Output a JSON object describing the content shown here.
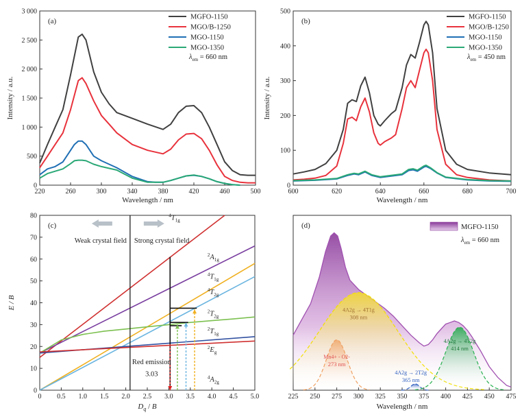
{
  "chart_data": [
    {
      "type": "line",
      "panel": "(a)",
      "xlabel": "Wavelength / nm",
      "ylabel": "Intensity / a.u.",
      "xlim": [
        220,
        500
      ],
      "ylim": [
        0,
        3000
      ],
      "xticks": [
        220,
        260,
        300,
        340,
        380,
        420,
        460,
        500
      ],
      "yticks": [
        0,
        500,
        1000,
        1500,
        2000,
        2500,
        3000
      ],
      "ytick_labels": [
        "0",
        "500",
        "1 000",
        "1 500",
        "2 000",
        "2 500",
        "3 000"
      ],
      "annotation": "λem = 660 nm",
      "annotation_parts": {
        "sym": "λ",
        "sub": "em",
        "rest": " = 660 nm"
      },
      "legend_position": "top-right",
      "series": [
        {
          "name": "MGFO-1150",
          "color": "#404040",
          "x": [
            220,
            230,
            240,
            250,
            260,
            270,
            275,
            280,
            290,
            300,
            310,
            320,
            340,
            360,
            380,
            390,
            400,
            410,
            420,
            430,
            440,
            450,
            460,
            470,
            480,
            490,
            500
          ],
          "y": [
            380,
            700,
            1000,
            1300,
            1900,
            2550,
            2600,
            2500,
            1950,
            1600,
            1400,
            1250,
            1150,
            1050,
            960,
            1050,
            1250,
            1360,
            1370,
            1250,
            1000,
            700,
            400,
            250,
            180,
            170,
            170
          ]
        },
        {
          "name": "MGO/B-1250",
          "color": "#e8323c",
          "x": [
            220,
            230,
            240,
            250,
            260,
            270,
            275,
            280,
            290,
            300,
            310,
            320,
            340,
            360,
            380,
            390,
            400,
            410,
            420,
            430,
            440,
            450,
            460,
            470,
            480,
            490,
            500
          ],
          "y": [
            300,
            500,
            700,
            900,
            1300,
            1800,
            1850,
            1750,
            1450,
            1200,
            1050,
            900,
            700,
            600,
            540,
            620,
            780,
            880,
            890,
            800,
            600,
            350,
            150,
            80,
            50,
            40,
            40
          ]
        },
        {
          "name": "MGO-1150",
          "color": "#1f6fb4",
          "x": [
            220,
            230,
            240,
            250,
            260,
            265,
            270,
            275,
            280,
            290,
            300,
            320,
            340,
            360,
            370,
            380,
            390,
            400,
            410,
            420,
            430,
            440,
            450,
            460,
            470,
            480
          ],
          "y": [
            180,
            280,
            320,
            400,
            600,
            700,
            760,
            760,
            700,
            500,
            420,
            300,
            150,
            60,
            50,
            50,
            80,
            120,
            160,
            170,
            150,
            110,
            60,
            30,
            10,
            0
          ]
        },
        {
          "name": "MGO-1350",
          "color": "#2aa876",
          "x": [
            220,
            230,
            240,
            250,
            260,
            265,
            270,
            275,
            280,
            290,
            300,
            320,
            340,
            360,
            370,
            380,
            390,
            400,
            410,
            420,
            430,
            440,
            450,
            460,
            470,
            480
          ],
          "y": [
            120,
            200,
            240,
            280,
            370,
            420,
            430,
            430,
            420,
            360,
            320,
            260,
            120,
            50,
            50,
            50,
            80,
            120,
            160,
            175,
            150,
            110,
            60,
            30,
            10,
            0
          ]
        }
      ]
    },
    {
      "type": "line",
      "panel": "(b)",
      "xlabel": "Wavelength / nm",
      "ylabel": "Intensity / a.u.",
      "xlim": [
        600,
        700
      ],
      "ylim": [
        0,
        500
      ],
      "xticks": [
        600,
        620,
        640,
        660,
        680,
        700
      ],
      "yticks": [
        0,
        100,
        200,
        300,
        400,
        500
      ],
      "annotation": "λem = 450 nm",
      "annotation_parts": {
        "sym": "λ",
        "sub": "em",
        "rest": " = 450 nm"
      },
      "legend_position": "top-right",
      "series": [
        {
          "name": "MGFO-1150",
          "color": "#404040",
          "x": [
            600,
            605,
            610,
            615,
            620,
            623,
            625,
            627,
            629,
            631,
            633,
            635,
            637,
            639,
            640,
            642,
            645,
            647,
            650,
            652,
            654,
            656,
            658,
            660,
            661,
            662,
            664,
            666,
            670,
            675,
            680,
            690,
            700
          ],
          "y": [
            32,
            38,
            45,
            62,
            100,
            160,
            235,
            245,
            240,
            285,
            310,
            265,
            200,
            175,
            170,
            185,
            205,
            215,
            280,
            345,
            375,
            365,
            410,
            460,
            470,
            460,
            380,
            220,
            100,
            60,
            45,
            35,
            30
          ]
        },
        {
          "name": "MGO/B-1250",
          "color": "#e8323c",
          "x": [
            600,
            605,
            610,
            615,
            620,
            623,
            625,
            627,
            629,
            631,
            633,
            635,
            637,
            639,
            640,
            642,
            645,
            647,
            650,
            652,
            654,
            656,
            658,
            660,
            661,
            662,
            664,
            666,
            670,
            675,
            680,
            690,
            700
          ],
          "y": [
            15,
            17,
            20,
            28,
            55,
            120,
            190,
            195,
            185,
            225,
            250,
            210,
            150,
            120,
            115,
            125,
            135,
            145,
            220,
            280,
            300,
            280,
            330,
            380,
            390,
            380,
            300,
            160,
            60,
            30,
            22,
            15,
            12
          ]
        },
        {
          "name": "MGO-1150",
          "color": "#1f6fb4",
          "x": [
            600,
            610,
            620,
            625,
            628,
            630,
            633,
            636,
            640,
            645,
            650,
            653,
            655,
            657,
            660,
            661,
            663,
            666,
            670,
            680,
            690,
            700
          ],
          "y": [
            12,
            14,
            18,
            28,
            32,
            30,
            38,
            28,
            22,
            26,
            30,
            42,
            44,
            40,
            52,
            54,
            48,
            35,
            22,
            15,
            12,
            11
          ]
        },
        {
          "name": "MGO-1350",
          "color": "#2aa876",
          "x": [
            600,
            610,
            620,
            625,
            628,
            630,
            633,
            636,
            640,
            645,
            650,
            653,
            655,
            657,
            660,
            661,
            663,
            666,
            670,
            680,
            690,
            700
          ],
          "y": [
            13,
            15,
            19,
            30,
            34,
            32,
            40,
            30,
            24,
            28,
            32,
            45,
            47,
            43,
            55,
            57,
            50,
            36,
            23,
            16,
            13,
            12
          ]
        }
      ]
    },
    {
      "type": "line",
      "panel": "(c)",
      "xlabel": "Dq / B",
      "ylabel": "E / B",
      "xlim": [
        0,
        5
      ],
      "ylim": [
        0,
        80
      ],
      "xticks": [
        0,
        0.5,
        1.0,
        1.5,
        2.0,
        2.5,
        3.0,
        3.5,
        4.0,
        4.5,
        5.0
      ],
      "xtick_labels": [
        "0",
        "0.5",
        "1.0",
        "1.5",
        "2.0",
        "2.5",
        "3.0",
        "3.5",
        "4.0",
        "4.5",
        "5.0"
      ],
      "yticks": [
        0,
        10,
        20,
        30,
        40,
        50,
        60,
        70,
        80
      ],
      "weak_field_label": "Weak crystal field",
      "strong_field_label": "Strong crystal field",
      "boundary_dq": 2.1,
      "red_emission_label": "Red emission",
      "red_emission_value": "3.03",
      "series": [
        {
          "name": "4T1g",
          "color": "#d03030",
          "x": [
            0,
            4.3
          ],
          "y": [
            15,
            80
          ]
        },
        {
          "name": "2A1g",
          "color": "#7a3fa0",
          "x": [
            0,
            5
          ],
          "y": [
            17,
            66
          ]
        },
        {
          "name": "4T1g",
          "color": "#f0b020",
          "x": [
            0,
            5
          ],
          "y": [
            0,
            58
          ]
        },
        {
          "name": "4T2g",
          "color": "#6bb5e0",
          "x": [
            0,
            5
          ],
          "y": [
            0,
            52
          ]
        },
        {
          "name": "2T2g",
          "color": "#7cc050",
          "x": [
            0,
            0.5,
            1,
            1.5,
            2,
            2.5,
            3,
            3.5,
            4,
            4.5,
            5
          ],
          "y": [
            17,
            23,
            25.5,
            27,
            28,
            29,
            30,
            31,
            31.8,
            32.6,
            33.5
          ]
        },
        {
          "name": "2T1g",
          "color": "#3050a0",
          "x": [
            0,
            5
          ],
          "y": [
            17,
            24.5
          ]
        },
        {
          "name": "2Eg",
          "color": "#d03030",
          "x": [
            0,
            5
          ],
          "y": [
            17.5,
            22.5
          ]
        }
      ],
      "level_labels": [
        {
          "main": "T",
          "pre": "4",
          "sub": "1g",
          "x": 3.0,
          "y": 78
        },
        {
          "main": "A",
          "pre": "2",
          "sub": "1g",
          "x": 3.9,
          "y": 60
        },
        {
          "main": "T",
          "pre": "4",
          "sub": "1g",
          "x": 3.9,
          "y": 51
        },
        {
          "main": "T",
          "pre": "4",
          "sub": "2g",
          "x": 3.9,
          "y": 44
        },
        {
          "main": "T",
          "pre": "2",
          "sub": "2g",
          "x": 3.9,
          "y": 34
        },
        {
          "main": "T",
          "pre": "2",
          "sub": "1g",
          "x": 3.9,
          "y": 26
        },
        {
          "main": "E",
          "pre": "2",
          "sub": "g",
          "x": 3.9,
          "y": 17.5
        },
        {
          "main": "A",
          "pre": "4",
          "sub": "2g",
          "x": 3.9,
          "y": 4
        }
      ],
      "arrows": [
        {
          "color": "#e02020",
          "x": 3.03,
          "y_from": 21,
          "y_to": 0
        },
        {
          "color": "#7cc050",
          "x": 3.2,
          "y_from": 0,
          "y_to": 30
        },
        {
          "color": "#6bb5e0",
          "x": 3.4,
          "y_from": 0,
          "y_to": 31
        },
        {
          "color": "#f0b020",
          "x": 3.6,
          "y_from": 0,
          "y_to": 37
        }
      ]
    },
    {
      "type": "area",
      "panel": "(d)",
      "xlabel": "Wavelength / nm",
      "xlim": [
        225,
        475
      ],
      "xticks": [
        225,
        250,
        275,
        300,
        325,
        350,
        375,
        400,
        425,
        450,
        475
      ],
      "legend": "MGFO-1150",
      "annotation": "λem = 660 nm",
      "annotation_parts": {
        "sym": "λ",
        "sub": "em",
        "rest": " = 660 nm"
      },
      "envelope": {
        "color": "#a050b0",
        "x": [
          225,
          235,
          245,
          255,
          262,
          268,
          272,
          276,
          280,
          285,
          290,
          300,
          310,
          320,
          330,
          340,
          350,
          360,
          370,
          375,
          380,
          385,
          390,
          395,
          400,
          405,
          410,
          415,
          420,
          425,
          430,
          440,
          450,
          460,
          470,
          475
        ],
        "y": [
          0.35,
          0.45,
          0.55,
          0.72,
          0.88,
          0.98,
          1.0,
          0.98,
          0.9,
          0.78,
          0.7,
          0.64,
          0.6,
          0.56,
          0.52,
          0.47,
          0.41,
          0.35,
          0.3,
          0.28,
          0.29,
          0.32,
          0.36,
          0.39,
          0.42,
          0.43,
          0.44,
          0.43,
          0.41,
          0.38,
          0.34,
          0.25,
          0.15,
          0.08,
          0.03,
          0.02
        ]
      },
      "bands": [
        {
          "label": "4A2g → 4T1g",
          "value": "308 nm",
          "center": 300,
          "sigma": 45,
          "amp": 0.62,
          "color": "#f2e000"
        },
        {
          "label": "Mn4+ - O2-",
          "value": "273 nm",
          "center": 275,
          "sigma": 12,
          "amp": 0.32,
          "color": "#f0a060"
        },
        {
          "label": "4A2g → 2T2g",
          "value": "365 nm",
          "center": 365,
          "sigma": 5,
          "amp": 0.04,
          "color": "#3060c0"
        },
        {
          "label": "4A2g → 4T2g",
          "value": "414 nm",
          "center": 416,
          "sigma": 16,
          "amp": 0.4,
          "color": "#28b050"
        }
      ]
    }
  ]
}
